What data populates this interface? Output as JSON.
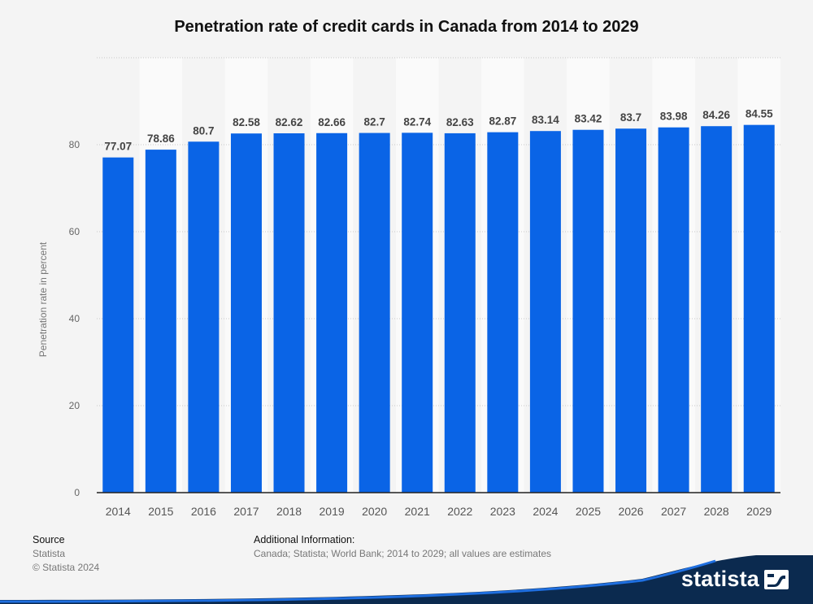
{
  "chart_data": {
    "type": "bar",
    "title": "Penetration rate of credit cards in Canada from 2014 to 2029",
    "xlabel": "",
    "ylabel": "Penetration rate in percent",
    "ylim": [
      0,
      100
    ],
    "yticks": [
      0,
      20,
      40,
      60,
      80
    ],
    "grid": true,
    "categories": [
      "2014",
      "2015",
      "2016",
      "2017",
      "2018",
      "2019",
      "2020",
      "2021",
      "2022",
      "2023",
      "2024",
      "2025",
      "2026",
      "2027",
      "2028",
      "2029"
    ],
    "values": [
      77.07,
      78.86,
      80.7,
      82.58,
      82.62,
      82.66,
      82.7,
      82.74,
      82.63,
      82.87,
      83.14,
      83.42,
      83.7,
      83.98,
      84.26,
      84.55
    ],
    "value_labels": [
      "77.07",
      "78.86",
      "80.7",
      "82.58",
      "82.62",
      "82.66",
      "82.7",
      "82.74",
      "82.63",
      "82.87",
      "83.14",
      "83.42",
      "83.7",
      "83.98",
      "84.26",
      "84.55"
    ],
    "bar_color": "#0a64e6"
  },
  "footer": {
    "source_heading": "Source",
    "source_name": "Statista",
    "copyright": "© Statista 2024",
    "info_heading": "Additional Information:",
    "info_text": "Canada; Statista; World Bank; 2014 to 2029; all values are estimates"
  },
  "brand": {
    "name": "statista",
    "color": "#0b2a4f",
    "accent": "#1f6fe0"
  }
}
